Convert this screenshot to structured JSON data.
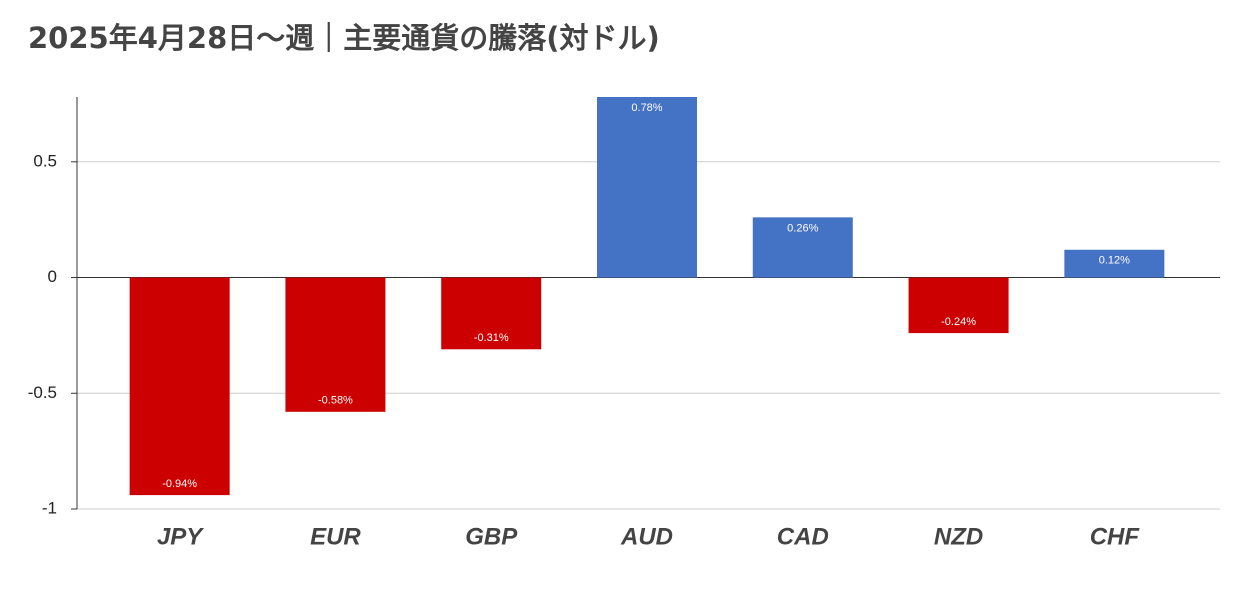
{
  "chart_data": {
    "type": "bar",
    "title": "2025年4月28日～週｜主要通貨の騰落(対ドル)",
    "categories": [
      "JPY",
      "EUR",
      "GBP",
      "AUD",
      "CAD",
      "NZD",
      "CHF"
    ],
    "values": [
      -0.94,
      -0.58,
      -0.31,
      0.78,
      0.26,
      -0.24,
      0.12
    ],
    "value_labels": [
      "-0.94%",
      "-0.58%",
      "-0.31%",
      "0.78%",
      "0.26%",
      "-0.24%",
      "0.12%"
    ],
    "colors": [
      "#cc0000",
      "#cc0000",
      "#cc0000",
      "#4472c4",
      "#4472c4",
      "#cc0000",
      "#4472c4"
    ],
    "ylim": [
      -1,
      0.78
    ],
    "yticks": [
      -1,
      -0.5,
      0,
      0.5
    ],
    "grid": true
  }
}
